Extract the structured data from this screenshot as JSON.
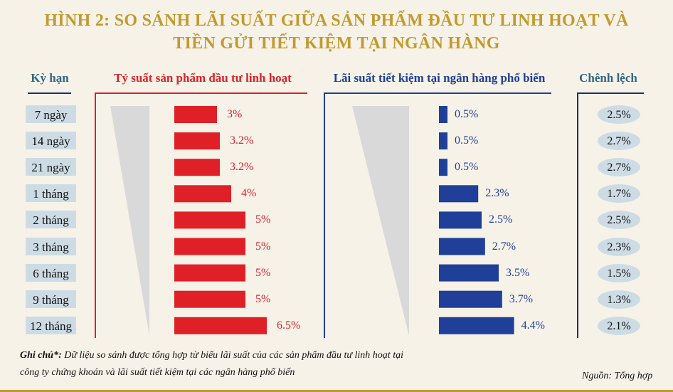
{
  "title_line1": "HÌNH 2: SO SÁNH LÃI SUẤT GIỮA SẢN PHẨM ĐẦU TƯ LINH HOẠT VÀ",
  "title_line2": "TIỀN GỬI TIẾT KIỆM TẠI NGÂN HÀNG",
  "colors": {
    "title": "#c29a2e",
    "flex": "#e02027",
    "bank": "#1f3f99",
    "diff_header": "#2f6685",
    "label_bg": "#cddce4"
  },
  "chart_data": {
    "type": "bar",
    "headers": {
      "term": "Kỳ hạn",
      "flex": "Tỷ suất sản phẩm đầu tư linh hoạt",
      "bank": "Lãi suất tiết kiệm tại ngân hàng phổ biến",
      "diff": "Chênh lệch"
    },
    "categories": [
      "7 ngày",
      "14 ngày",
      "21 ngày",
      "1 tháng",
      "2 tháng",
      "3 tháng",
      "6 tháng",
      "9 tháng",
      "12 tháng"
    ],
    "series": [
      {
        "name": "Tỷ suất sản phẩm đầu tư linh hoạt",
        "values": [
          3,
          3.2,
          3.2,
          4,
          5,
          5,
          5,
          5,
          6.5
        ],
        "labels": [
          "3%",
          "3.2%",
          "3.2%",
          "4%",
          "5%",
          "5%",
          "5%",
          "5%",
          "6.5%"
        ]
      },
      {
        "name": "Lãi suất tiết kiệm tại ngân hàng phổ biến",
        "values": [
          0.5,
          0.5,
          0.5,
          2.3,
          2.5,
          2.7,
          3.5,
          3.7,
          4.4
        ],
        "labels": [
          "0.5%",
          "0.5%",
          "0.5%",
          "2.3%",
          "2.5%",
          "2.7%",
          "3.5%",
          "3.7%",
          "4.4%"
        ]
      }
    ],
    "difference": [
      "2.5%",
      "2.7%",
      "2.7%",
      "1.7%",
      "2.5%",
      "2.3%",
      "1.5%",
      "1.3%",
      "2.1%"
    ]
  },
  "note_label": "Ghi chú*:",
  "note_text1": " Dữ liệu so sánh được tổng hợp từ biểu lãi suất của các sản phẩm đầu tư linh hoạt tại",
  "note_text2": "công ty chứng khoán và lãi suất tiết kiệm tại các ngân hàng phổ biến",
  "source": "Nguồn: Tổng hợp"
}
